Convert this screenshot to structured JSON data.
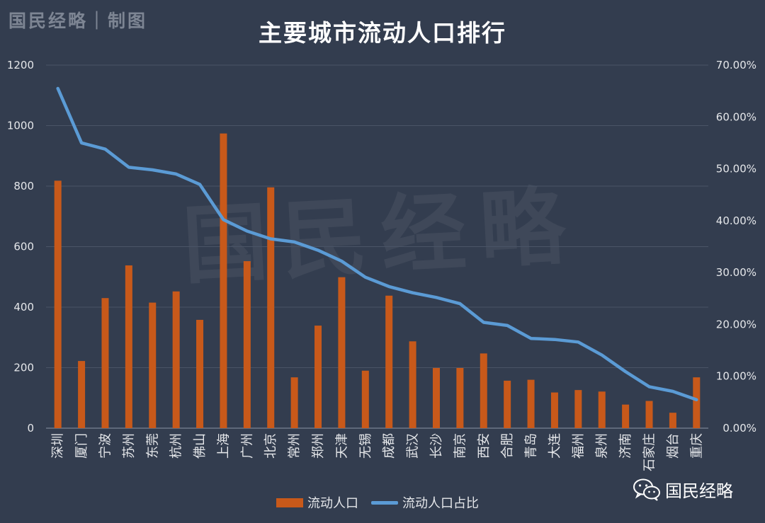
{
  "brand_top": "国民经略｜制图",
  "brand_bottom": "国民经略",
  "watermark": "国民经略",
  "colors": {
    "background": "#333d4f",
    "bar": "#c8591a",
    "line": "#5b9bd5",
    "grid": "#4a5466",
    "text": "#e5e7ea"
  },
  "chart_data": {
    "type": "bar",
    "title": "主要城市流动人口排行",
    "categories": [
      "深圳",
      "厦门",
      "宁波",
      "苏州",
      "东莞",
      "杭州",
      "佛山",
      "上海",
      "广州",
      "北京",
      "常州",
      "郑州",
      "天津",
      "无锡",
      "成都",
      "武汉",
      "长沙",
      "南京",
      "西安",
      "合肥",
      "青岛",
      "大连",
      "福州",
      "泉州",
      "济南",
      "石家庄",
      "烟台",
      "重庆"
    ],
    "y_left": {
      "ylim": [
        0,
        1200
      ],
      "ticks": [
        "0",
        "200",
        "400",
        "600",
        "800",
        "1000",
        "1200"
      ]
    },
    "y_right": {
      "ylim": [
        0,
        70
      ],
      "ticks": [
        "0.00%",
        "10.00%",
        "20.00%",
        "30.00%",
        "40.00%",
        "50.00%",
        "60.00%",
        "70.00%"
      ]
    },
    "grid": true,
    "legend_position": "bottom",
    "series": [
      {
        "name": "流动人口",
        "type": "bar",
        "axis": "left",
        "values": [
          818,
          222,
          430,
          538,
          415,
          452,
          358,
          974,
          552,
          796,
          168,
          339,
          499,
          190,
          438,
          287,
          199,
          199,
          247,
          157,
          160,
          118,
          126,
          121,
          78,
          90,
          51,
          168
        ]
      },
      {
        "name": "流动人口占比",
        "type": "line",
        "axis": "right",
        "values": [
          65.5,
          55.0,
          53.8,
          50.3,
          49.8,
          49.0,
          47.0,
          40.2,
          38.0,
          36.5,
          35.9,
          34.3,
          32.2,
          29.1,
          27.3,
          26.1,
          25.2,
          24.0,
          20.4,
          19.8,
          17.3,
          17.1,
          16.6,
          14.1,
          10.9,
          8.0,
          7.1,
          5.5
        ]
      }
    ]
  }
}
